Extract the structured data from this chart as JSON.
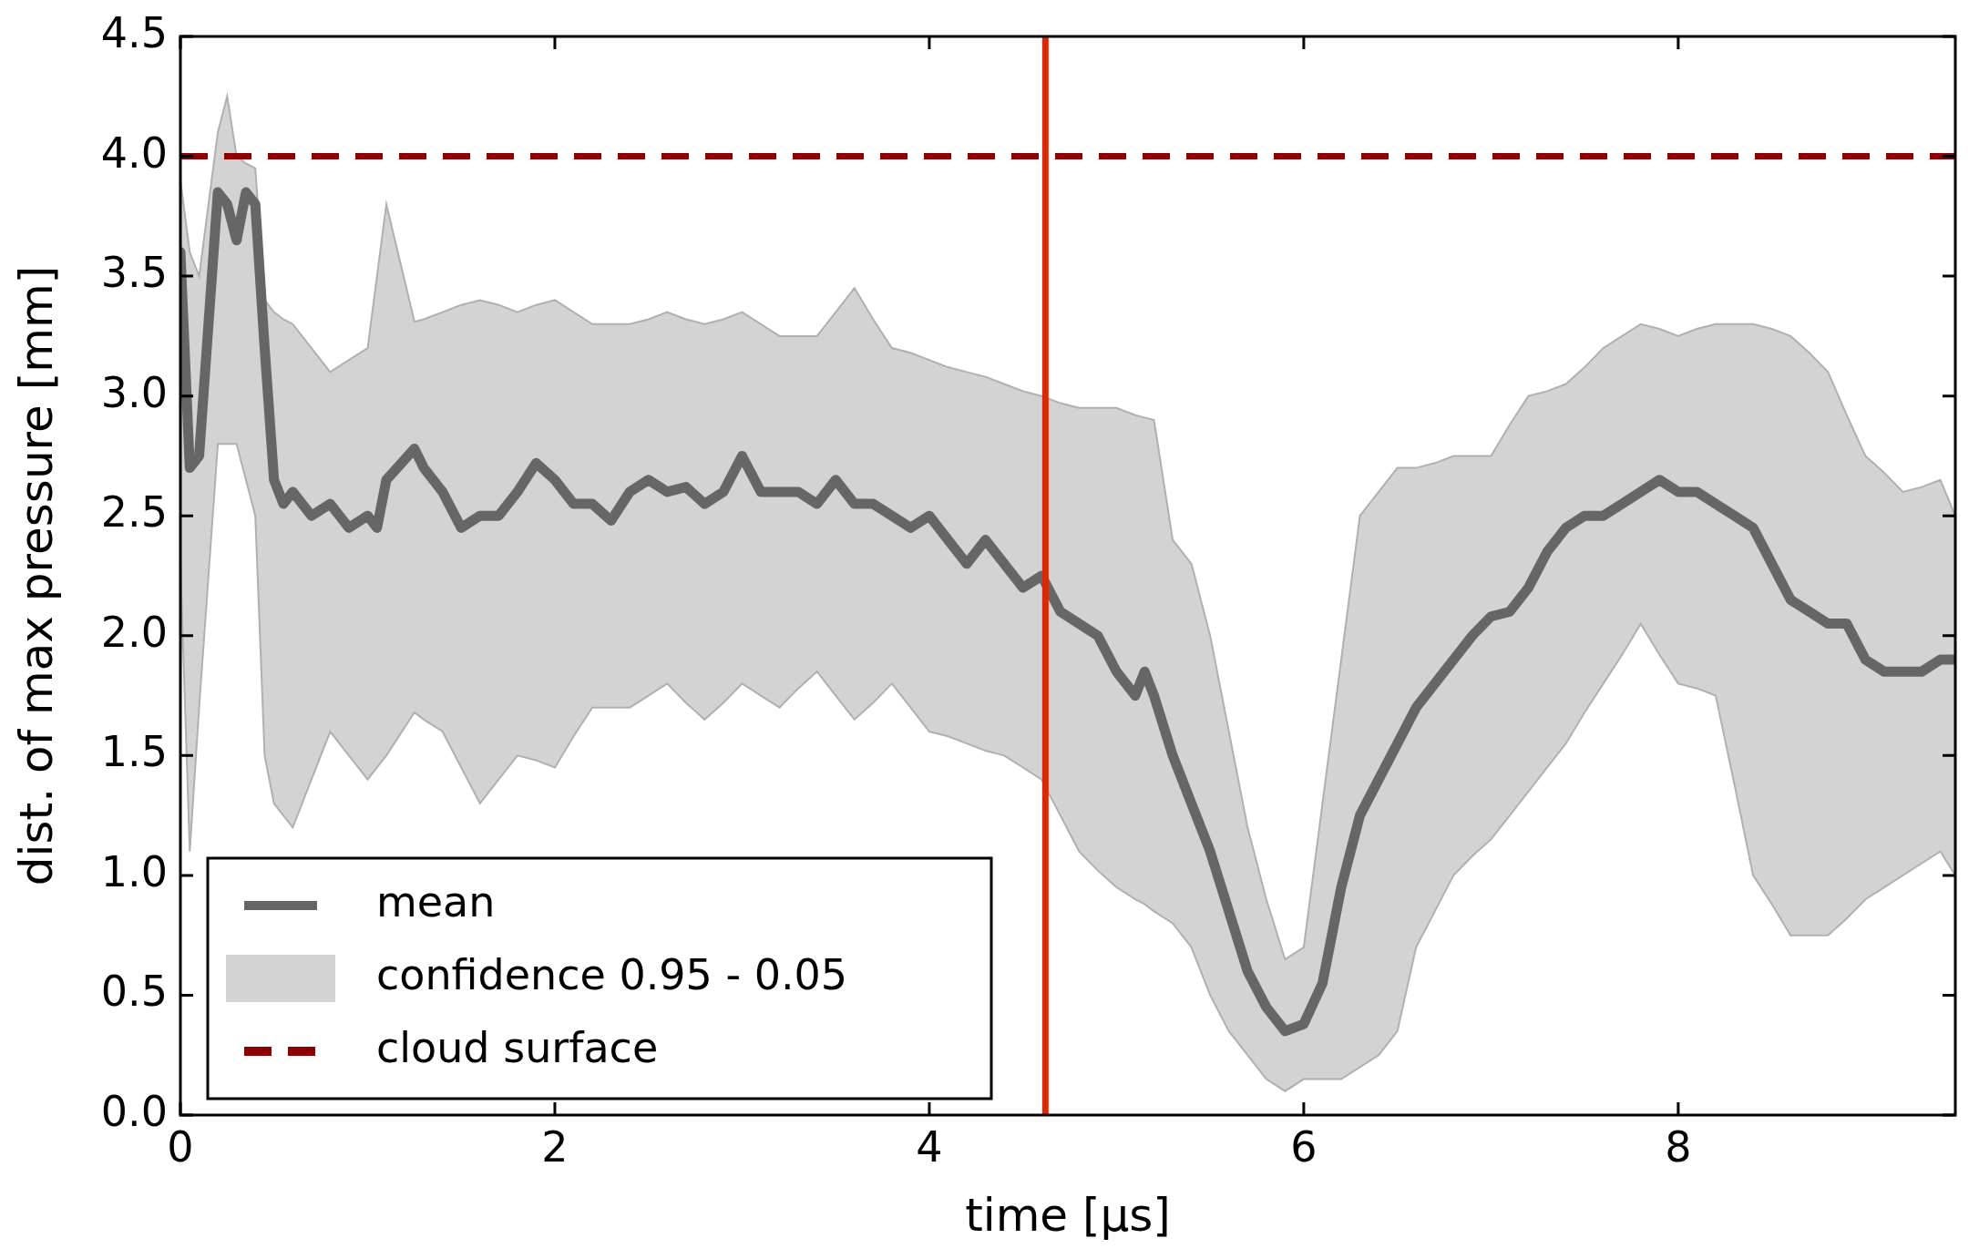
{
  "chart_data": {
    "type": "line",
    "xlabel": "time [μs]",
    "ylabel": "dist. of max pressure [mm]",
    "xlim": [
      0,
      9.48
    ],
    "xticks": [
      0,
      2,
      4,
      6,
      8
    ],
    "ylim": [
      0,
      4.5
    ],
    "yticks": [
      {
        "value": 0,
        "label": "0.0"
      },
      {
        "value": 0.5,
        "label": "0.5"
      },
      {
        "value": 1,
        "label": "1.0"
      },
      {
        "value": 1.5,
        "label": "1.5"
      },
      {
        "value": 2,
        "label": "2.0"
      },
      {
        "value": 2.5,
        "label": "2.5"
      },
      {
        "value": 3,
        "label": "3.0"
      },
      {
        "value": 3.5,
        "label": "3.5"
      },
      {
        "value": 4,
        "label": "4.0"
      },
      {
        "value": 4.5,
        "label": "4.5"
      }
    ],
    "grid": false,
    "legend": "bottom left",
    "line_style": "solid",
    "marker": "none",
    "annotations": [
      "confidence 0.95 - 0.05"
    ],
    "series": [
      {
        "name": "mean",
        "type": "line",
        "color": "#666666",
        "x": [
          0,
          0.05,
          0.1,
          0.15,
          0.2,
          0.25,
          0.3,
          0.35,
          0.4,
          0.45,
          0.5,
          0.55,
          0.6,
          0.7,
          0.8,
          0.9,
          1.0,
          1.05,
          1.1,
          1.25,
          1.3,
          1.4,
          1.5,
          1.6,
          1.7,
          1.8,
          1.9,
          2.0,
          2.1,
          2.2,
          2.3,
          2.4,
          2.5,
          2.6,
          2.7,
          2.8,
          2.9,
          3.0,
          3.1,
          3.2,
          3.3,
          3.4,
          3.5,
          3.6,
          3.7,
          3.8,
          3.9,
          4.0,
          4.1,
          4.2,
          4.3,
          4.4,
          4.5,
          4.6,
          4.7,
          4.8,
          4.9,
          5.0,
          5.1,
          5.15,
          5.2,
          5.3,
          5.4,
          5.5,
          5.6,
          5.7,
          5.8,
          5.9,
          6.0,
          6.1,
          6.2,
          6.3,
          6.4,
          6.5,
          6.6,
          6.7,
          6.8,
          6.9,
          7.0,
          7.1,
          7.2,
          7.3,
          7.4,
          7.5,
          7.6,
          7.7,
          7.8,
          7.9,
          8.0,
          8.1,
          8.2,
          8.3,
          8.4,
          8.5,
          8.6,
          8.7,
          8.8,
          8.9,
          9.0,
          9.1,
          9.2,
          9.3,
          9.4,
          9.48
        ],
        "values": [
          3.6,
          2.7,
          2.75,
          3.3,
          3.85,
          3.8,
          3.65,
          3.85,
          3.8,
          3.2,
          2.65,
          2.55,
          2.6,
          2.5,
          2.55,
          2.45,
          2.5,
          2.45,
          2.65,
          2.78,
          2.7,
          2.6,
          2.45,
          2.5,
          2.5,
          2.6,
          2.72,
          2.65,
          2.55,
          2.55,
          2.48,
          2.6,
          2.65,
          2.6,
          2.62,
          2.55,
          2.6,
          2.75,
          2.6,
          2.6,
          2.6,
          2.55,
          2.65,
          2.55,
          2.55,
          2.5,
          2.45,
          2.5,
          2.4,
          2.3,
          2.4,
          2.3,
          2.2,
          2.25,
          2.1,
          2.05,
          2.0,
          1.85,
          1.75,
          1.85,
          1.75,
          1.5,
          1.3,
          1.1,
          0.85,
          0.6,
          0.45,
          0.35,
          0.38,
          0.55,
          0.95,
          1.25,
          1.4,
          1.55,
          1.7,
          1.8,
          1.9,
          2.0,
          2.08,
          2.1,
          2.2,
          2.35,
          2.45,
          2.5,
          2.5,
          2.55,
          2.6,
          2.65,
          2.6,
          2.6,
          2.55,
          2.5,
          2.45,
          2.3,
          2.15,
          2.1,
          2.05,
          2.05,
          1.9,
          1.85,
          1.85,
          1.85,
          1.9,
          1.9
        ],
        "upper": [
          3.9,
          3.6,
          3.5,
          3.8,
          4.1,
          4.25,
          4.0,
          3.97,
          3.95,
          3.4,
          3.35,
          3.32,
          3.3,
          3.2,
          3.1,
          3.15,
          3.2,
          3.5,
          3.8,
          3.31,
          3.32,
          3.35,
          3.38,
          3.4,
          3.38,
          3.35,
          3.38,
          3.4,
          3.35,
          3.3,
          3.3,
          3.3,
          3.32,
          3.35,
          3.32,
          3.3,
          3.32,
          3.35,
          3.3,
          3.25,
          3.25,
          3.25,
          3.35,
          3.45,
          3.32,
          3.2,
          3.18,
          3.15,
          3.12,
          3.1,
          3.08,
          3.05,
          3.02,
          3.0,
          2.97,
          2.95,
          2.95,
          2.95,
          2.92,
          2.91,
          2.9,
          2.4,
          2.3,
          2.0,
          1.6,
          1.2,
          0.9,
          0.65,
          0.7,
          1.3,
          1.9,
          2.5,
          2.6,
          2.7,
          2.7,
          2.72,
          2.75,
          2.75,
          2.75,
          2.88,
          3.0,
          3.02,
          3.05,
          3.12,
          3.2,
          3.25,
          3.3,
          3.28,
          3.25,
          3.28,
          3.3,
          3.3,
          3.3,
          3.28,
          3.25,
          3.18,
          3.1,
          2.92,
          2.75,
          2.68,
          2.6,
          2.62,
          2.65,
          2.5
        ],
        "lower": [
          2.3,
          1.1,
          1.7,
          2.25,
          2.8,
          2.8,
          2.8,
          2.65,
          2.5,
          1.5,
          1.3,
          1.25,
          1.2,
          1.4,
          1.6,
          1.5,
          1.4,
          1.45,
          1.5,
          1.68,
          1.65,
          1.6,
          1.45,
          1.3,
          1.4,
          1.5,
          1.48,
          1.45,
          1.58,
          1.7,
          1.7,
          1.7,
          1.75,
          1.8,
          1.72,
          1.65,
          1.72,
          1.8,
          1.75,
          1.7,
          1.78,
          1.85,
          1.75,
          1.65,
          1.72,
          1.8,
          1.7,
          1.6,
          1.58,
          1.55,
          1.52,
          1.5,
          1.45,
          1.4,
          1.25,
          1.1,
          1.02,
          0.95,
          0.9,
          0.88,
          0.85,
          0.8,
          0.7,
          0.5,
          0.35,
          0.25,
          0.15,
          0.1,
          0.15,
          0.15,
          0.15,
          0.2,
          0.25,
          0.35,
          0.7,
          0.85,
          1.0,
          1.08,
          1.15,
          1.25,
          1.35,
          1.45,
          1.55,
          1.68,
          1.8,
          1.92,
          2.05,
          1.92,
          1.8,
          1.78,
          1.75,
          1.38,
          1.0,
          0.88,
          0.75,
          0.75,
          0.75,
          0.82,
          0.9,
          0.95,
          1.0,
          1.05,
          1.1,
          1.0
        ]
      }
    ],
    "ref_lines": [
      {
        "axis": "y",
        "value": 4,
        "label": "cloud surface",
        "color": "#8b0000",
        "line_style": "dashed"
      },
      {
        "axis": "x",
        "value": 4.62,
        "color": "#d62a0a",
        "line_style": "solid"
      }
    ]
  }
}
